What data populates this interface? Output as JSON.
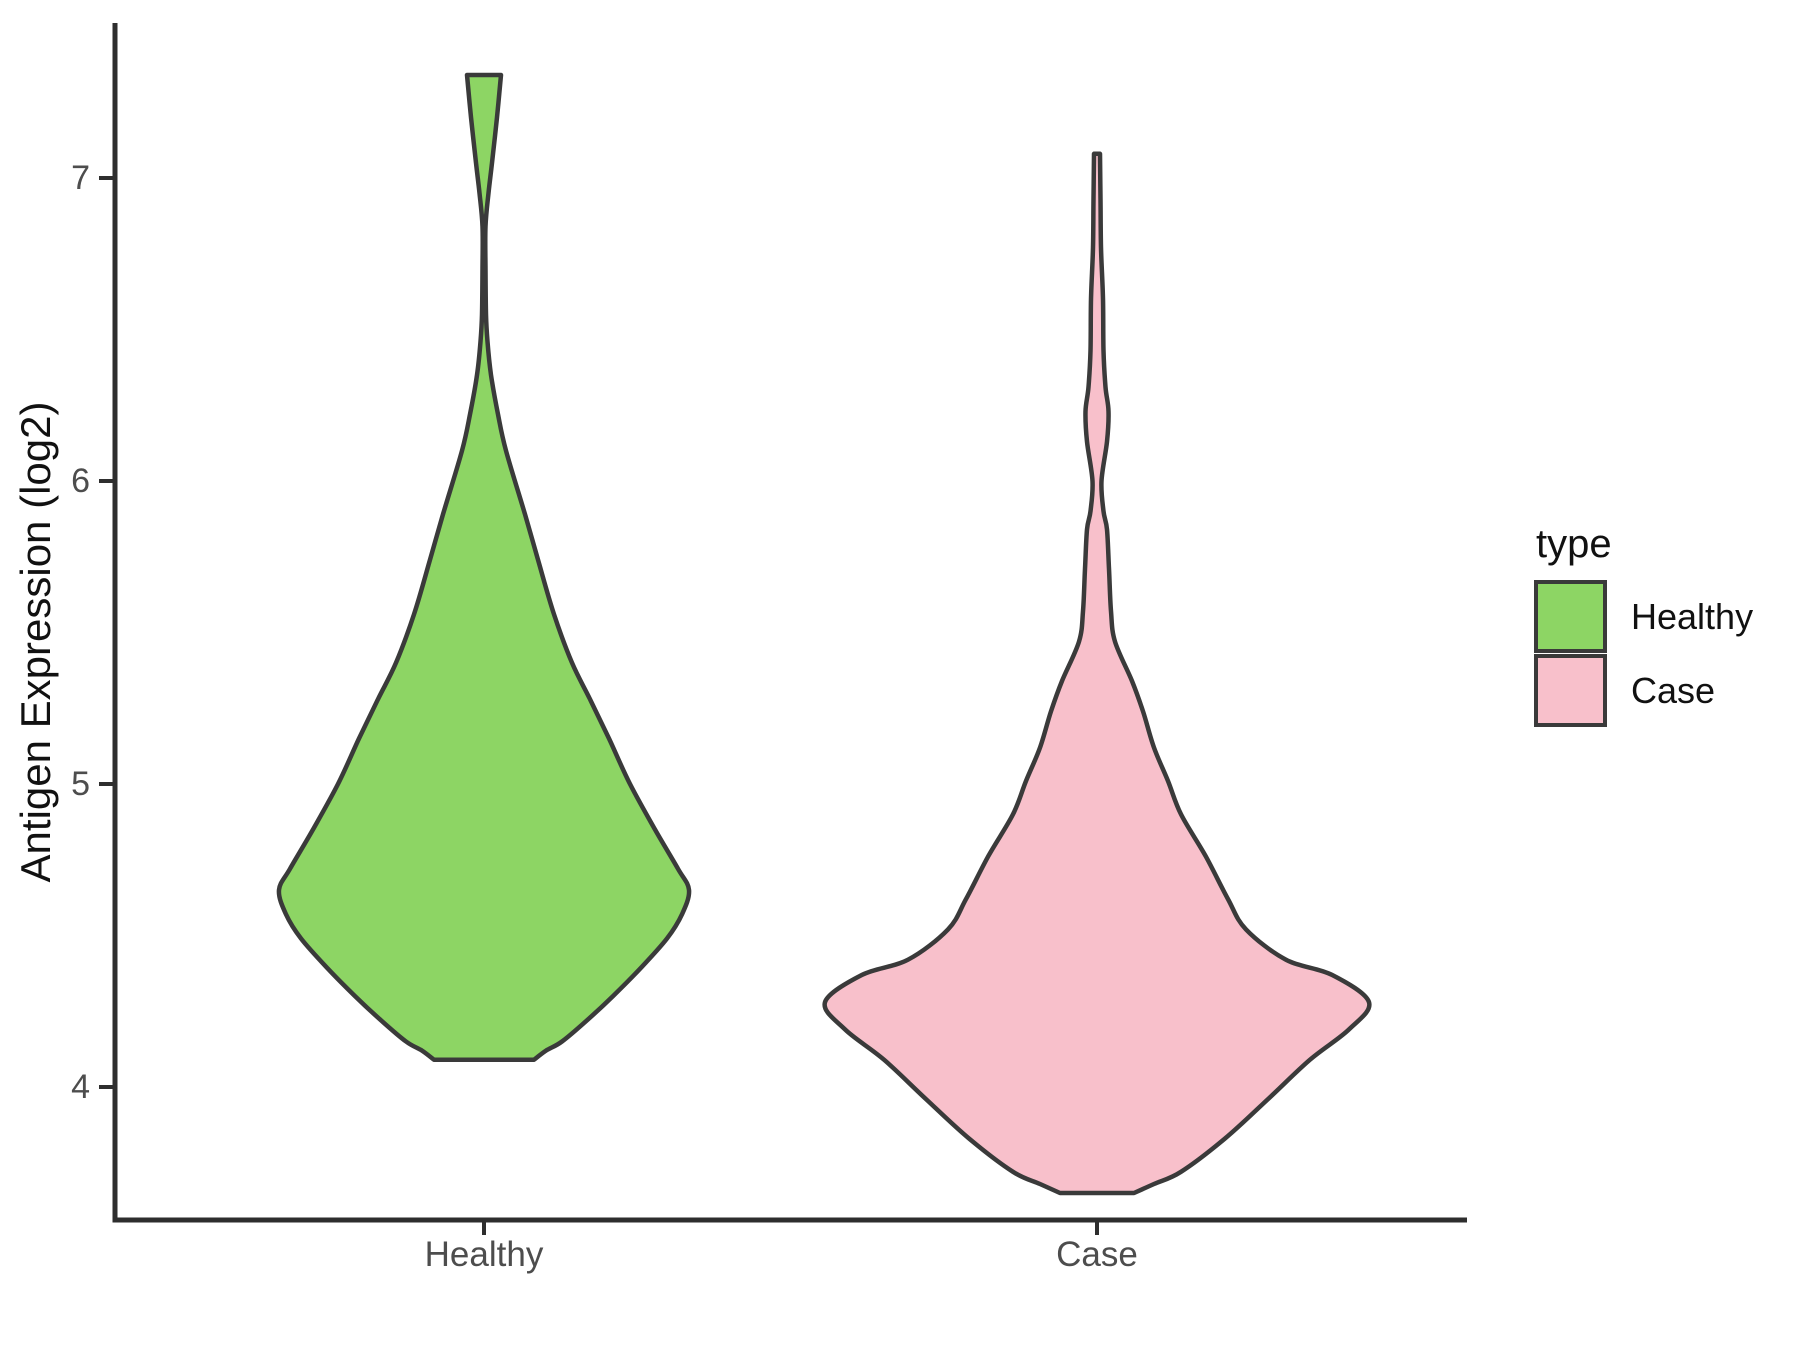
{
  "chart_data": {
    "type": "violin",
    "title": "",
    "xlabel": "",
    "ylabel": "Antigen Expression (log2)",
    "categories": [
      "Healthy",
      "Case"
    ],
    "y_ticks": [
      7,
      6,
      5,
      4
    ],
    "ylim": [
      3.56,
      7.51
    ],
    "grid": "off",
    "legend_position": "right",
    "series": [
      {
        "name": "Healthy",
        "fill": "#8dd564",
        "value_range": [
          4.09,
          7.34
        ],
        "peak_density_value": 4.65,
        "profile": [
          [
            7.34,
            17
          ],
          [
            7.2,
            13
          ],
          [
            7.05,
            8
          ],
          [
            6.95,
            4.5
          ],
          [
            6.84,
            1.5
          ],
          [
            6.7,
            1.5
          ],
          [
            6.55,
            2
          ],
          [
            6.46,
            3.5
          ],
          [
            6.35,
            7
          ],
          [
            6.22,
            14
          ],
          [
            6.1,
            22
          ],
          [
            5.89,
            41
          ],
          [
            5.74,
            54
          ],
          [
            5.56,
            70
          ],
          [
            5.4,
            88
          ],
          [
            5.28,
            106
          ],
          [
            5.15,
            125
          ],
          [
            5.0,
            146
          ],
          [
            4.85,
            171
          ],
          [
            4.72,
            194
          ],
          [
            4.65,
            205
          ],
          [
            4.57,
            198
          ],
          [
            4.49,
            183
          ],
          [
            4.39,
            156
          ],
          [
            4.3,
            129
          ],
          [
            4.22,
            103
          ],
          [
            4.15,
            78
          ],
          [
            4.12,
            62
          ],
          [
            4.09,
            50
          ]
        ]
      },
      {
        "name": "Case",
        "fill": "#f8c0cb",
        "value_range": [
          3.65,
          7.08
        ],
        "peak_density_value": 4.28,
        "profile": [
          [
            7.08,
            3
          ],
          [
            6.93,
            3.5
          ],
          [
            6.77,
            4
          ],
          [
            6.6,
            6
          ],
          [
            6.43,
            6.5
          ],
          [
            6.31,
            8.5
          ],
          [
            6.23,
            11.5
          ],
          [
            6.13,
            10
          ],
          [
            6.0,
            4.5
          ],
          [
            5.9,
            6.5
          ],
          [
            5.84,
            10
          ],
          [
            5.71,
            12
          ],
          [
            5.57,
            14
          ],
          [
            5.47,
            18
          ],
          [
            5.34,
            35
          ],
          [
            5.24,
            46
          ],
          [
            5.12,
            57
          ],
          [
            5.01,
            71
          ],
          [
            4.9,
            84
          ],
          [
            4.76,
            109
          ],
          [
            4.62,
            131
          ],
          [
            4.52,
            149
          ],
          [
            4.42,
            189
          ],
          [
            4.37,
            235
          ],
          [
            4.28,
            272
          ],
          [
            4.19,
            252
          ],
          [
            4.09,
            213
          ],
          [
            3.96,
            171
          ],
          [
            3.83,
            128
          ],
          [
            3.72,
            84
          ],
          [
            3.68,
            57
          ],
          [
            3.65,
            37
          ]
        ]
      }
    ]
  },
  "legend": {
    "title": "type",
    "entries": [
      {
        "label": "Healthy",
        "color": "#8dd564"
      },
      {
        "label": "Case",
        "color": "#f8c0cb"
      }
    ]
  },
  "style": {
    "outline_color": "#3a3a3a",
    "axis_color": "#2e2e2e",
    "tick_label_color": "#4d4d4d",
    "text_color": "#111111",
    "background": "#ffffff"
  }
}
